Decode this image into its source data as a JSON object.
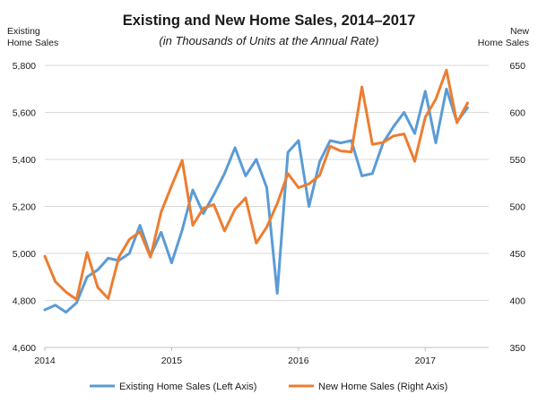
{
  "chart_data": {
    "type": "line",
    "title": "Existing and New Home Sales, 2014–2017",
    "subtitle": "(in Thousands of Units at the Annual Rate)",
    "left_axis_label": [
      "Existing",
      "Home Sales"
    ],
    "right_axis_label": [
      "New",
      "Home Sales"
    ],
    "left_ylim": [
      4600,
      5800
    ],
    "right_ylim": [
      350,
      650
    ],
    "left_ticks": [
      "4,600",
      "4,800",
      "5,000",
      "5,200",
      "5,400",
      "5,600",
      "5,800"
    ],
    "left_tick_values": [
      4600,
      4800,
      5000,
      5200,
      5400,
      5600,
      5800
    ],
    "right_ticks": [
      "350",
      "400",
      "450",
      "500",
      "550",
      "600",
      "650"
    ],
    "right_tick_values": [
      350,
      400,
      450,
      500,
      550,
      600,
      650
    ],
    "x_ticks": [
      "2014",
      "2015",
      "2016",
      "2017"
    ],
    "x_tick_values": [
      2014,
      2015,
      2016,
      2017
    ],
    "xlim": [
      2014,
      2017.5
    ],
    "grid": "horizontal",
    "legend_position": "bottom",
    "colors": {
      "existing": "#5b9bd5",
      "new": "#ed7d31"
    },
    "series": [
      {
        "name": "Existing Home Sales (Left Axis)",
        "axis": "left",
        "x": [
          2014,
          2014.083,
          2014.167,
          2014.25,
          2014.333,
          2014.417,
          2014.5,
          2014.583,
          2014.667,
          2014.75,
          2014.833,
          2014.917,
          2015,
          2015.083,
          2015.167,
          2015.25,
          2015.333,
          2015.417,
          2015.5,
          2015.583,
          2015.667,
          2015.75,
          2015.833,
          2015.917,
          2016,
          2016.083,
          2016.167,
          2016.25,
          2016.333,
          2016.417,
          2016.5,
          2016.583,
          2016.667,
          2016.75,
          2016.833,
          2016.917,
          2017,
          2017.083,
          2017.167,
          2017.25,
          2017.333
        ],
        "values": [
          4760,
          4780,
          4750,
          4790,
          4900,
          4930,
          4980,
          4970,
          5000,
          5120,
          4990,
          5090,
          4960,
          5100,
          5270,
          5170,
          5250,
          5340,
          5450,
          5330,
          5400,
          5280,
          4830,
          5430,
          5480,
          5200,
          5390,
          5480,
          5470,
          5480,
          5330,
          5340,
          5470,
          5540,
          5600,
          5510,
          5690,
          5470,
          5700,
          5560,
          5620
        ]
      },
      {
        "name": "New Home Sales (Right Axis)",
        "axis": "right",
        "x": [
          2014,
          2014.083,
          2014.167,
          2014.25,
          2014.333,
          2014.417,
          2014.5,
          2014.583,
          2014.667,
          2014.75,
          2014.833,
          2014.917,
          2015,
          2015.083,
          2015.167,
          2015.25,
          2015.333,
          2015.417,
          2015.5,
          2015.583,
          2015.667,
          2015.75,
          2015.833,
          2015.917,
          2016,
          2016.083,
          2016.167,
          2016.25,
          2016.333,
          2016.417,
          2016.5,
          2016.583,
          2016.667,
          2016.75,
          2016.833,
          2016.917,
          2017,
          2017.083,
          2017.167,
          2017.25,
          2017.333
        ],
        "values": [
          447,
          420,
          409,
          401,
          451,
          414,
          402,
          446,
          465,
          473,
          446,
          494,
          522,
          549,
          480,
          498,
          502,
          474,
          497,
          509,
          461,
          478,
          503,
          535,
          520,
          524,
          533,
          564,
          559,
          558,
          627,
          566,
          568,
          575,
          577,
          548,
          595,
          614,
          645,
          589,
          610
        ]
      }
    ]
  }
}
